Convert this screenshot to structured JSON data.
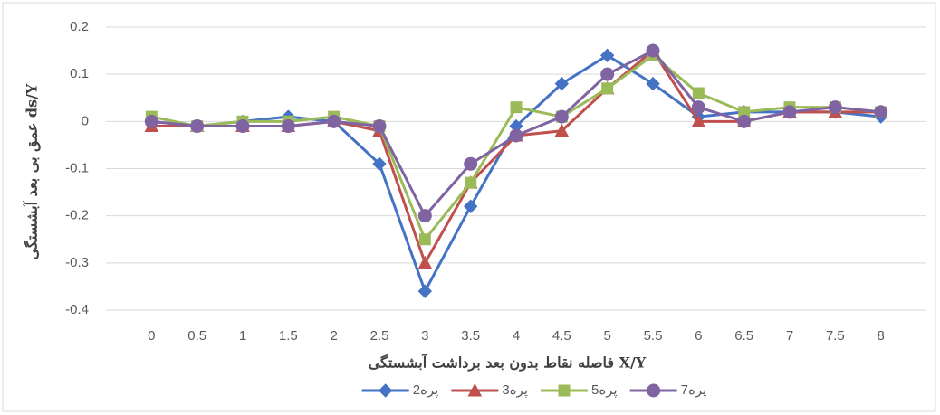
{
  "chart_data": {
    "type": "line",
    "y_label": "عمق بی بعد آبشستگی ds/Y",
    "x_label": "فاصله نقاط بدون بعد برداشت آبشستگی X/Y",
    "x": [
      0,
      0.5,
      1,
      1.5,
      2,
      2.5,
      3,
      3.5,
      4,
      4.5,
      5,
      5.5,
      6,
      6.5,
      7,
      7.5,
      8
    ],
    "xlim": [
      -0.5,
      8.5
    ],
    "xticks": [
      0,
      0.5,
      1,
      1.5,
      2,
      2.5,
      3,
      3.5,
      4,
      4.5,
      5,
      5.5,
      6,
      6.5,
      7,
      7.5,
      8
    ],
    "ylim": [
      -0.4,
      0.2
    ],
    "yticks": [
      -0.4,
      -0.3,
      -0.2,
      -0.1,
      0,
      0.1,
      0.2
    ],
    "grid": true,
    "legend": "bottom",
    "series": [
      {
        "name": "2پره",
        "color": "#4472c4",
        "marker": "diamond",
        "values": [
          0,
          -0.01,
          0,
          0.01,
          0,
          -0.09,
          -0.36,
          -0.18,
          -0.01,
          0.08,
          0.14,
          0.08,
          0.01,
          0.02,
          0.02,
          0.02,
          0.01
        ]
      },
      {
        "name": "3پره",
        "color": "#c0504d",
        "marker": "triangle",
        "values": [
          -0.01,
          -0.01,
          -0.01,
          -0.01,
          0,
          -0.02,
          -0.3,
          -0.13,
          -0.03,
          -0.02,
          0.07,
          0.15,
          0,
          0,
          0.02,
          0.02,
          0.02
        ]
      },
      {
        "name": "5پره",
        "color": "#9bbb59",
        "marker": "square",
        "values": [
          0.01,
          -0.01,
          0,
          0,
          0.01,
          -0.01,
          -0.25,
          -0.13,
          0.03,
          0.01,
          0.07,
          0.14,
          0.06,
          0.02,
          0.03,
          0.03,
          0.02
        ]
      },
      {
        "name": "7پره",
        "color": "#8064a2",
        "marker": "circle",
        "values": [
          0,
          -0.01,
          -0.01,
          -0.01,
          0,
          -0.01,
          -0.2,
          -0.09,
          -0.03,
          0.01,
          0.1,
          0.15,
          0.03,
          0,
          0.02,
          0.03,
          0.02
        ]
      }
    ]
  }
}
